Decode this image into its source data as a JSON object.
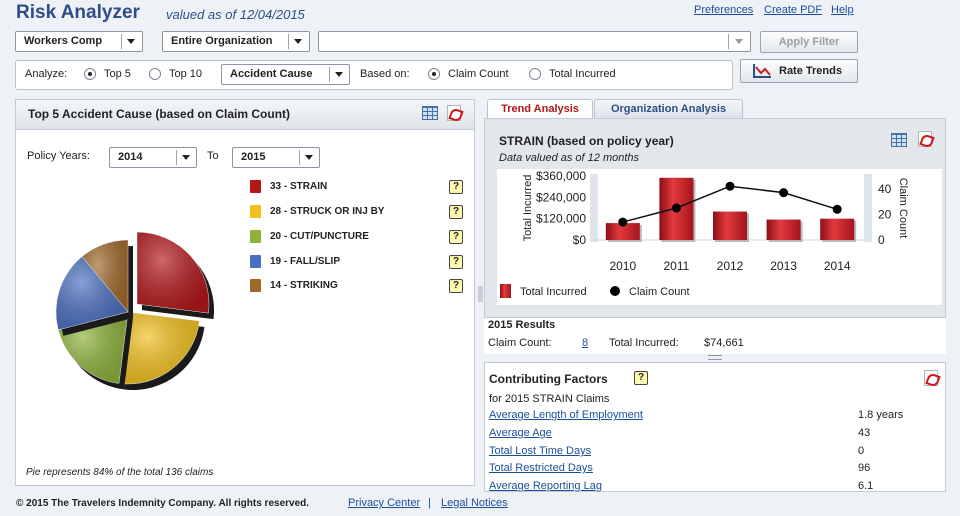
{
  "header": {
    "title": "Risk Analyzer",
    "valued_as_of": "valued as of 12/04/2015",
    "links": {
      "preferences": "Preferences",
      "create_pdf": "Create PDF",
      "help": "Help"
    }
  },
  "filters": {
    "line": "Workers Comp",
    "organization": "Entire Organization",
    "sub_filter": "",
    "apply_label": "Apply Filter",
    "rate_trends_label": "Rate Trends"
  },
  "analyze": {
    "label": "Analyze:",
    "top5": "Top 5",
    "top10": "Top 10",
    "dimension": "Accident Cause",
    "based_on_label": "Based on:",
    "claim_count": "Claim Count",
    "total_incurred": "Total Incurred"
  },
  "left_panel": {
    "title": "Top 5 Accident Cause (based on Claim Count)",
    "policy_years_label": "Policy Years:",
    "from_year": "2014",
    "to_label": "To",
    "to_year": "2015",
    "note": "Pie represents 84% of the total 136 claims",
    "legend": [
      {
        "label": "33 - STRAIN",
        "color": "#b3171a"
      },
      {
        "label": "28 - STRUCK OR INJ BY",
        "color": "#f2c01c"
      },
      {
        "label": "20 - CUT/PUNCTURE",
        "color": "#8cb23a"
      },
      {
        "label": "19 - FALL/SLIP",
        "color": "#4a6ec0"
      },
      {
        "label": "14 - STRIKING",
        "color": "#a0692a"
      }
    ],
    "help_glyph": "?"
  },
  "tabs": {
    "trend": "Trend Analysis",
    "org": "Organization Analysis"
  },
  "trend_chart": {
    "title": "STRAIN (based on policy year)",
    "subtitle": "Data valued as of 12 months",
    "legend_bar": "Total Incurred",
    "legend_dot": "Claim Count"
  },
  "chart_data": {
    "type": "bar",
    "categories": [
      "2010",
      "2011",
      "2012",
      "2013",
      "2014"
    ],
    "series": [
      {
        "name": "Total Incurred",
        "type": "bar",
        "axis": "left",
        "values": [
          95000,
          350000,
          160000,
          115000,
          120000
        ],
        "color": "#c8202a"
      },
      {
        "name": "Claim Count",
        "type": "line",
        "axis": "right",
        "values": [
          14,
          25,
          42,
          37,
          24
        ],
        "color": "#000000"
      }
    ],
    "ylabel": "Total Incurred",
    "ylabel_right": "Claim Count",
    "ylim": [
      0,
      360000
    ],
    "ylim_right": [
      0,
      50
    ],
    "yticks": [
      "$0",
      "$120,000",
      "$240,000",
      "$360,000"
    ],
    "yticks_right": [
      "0",
      "20",
      "40"
    ]
  },
  "results": {
    "title": "2015 Results",
    "claim_count_label": "Claim Count:",
    "claim_count": "8",
    "total_incurred_label": "Total Incurred:",
    "total_incurred": "$74,661"
  },
  "contributing": {
    "title": "Contributing Factors",
    "subtitle": "for 2015 STRAIN Claims",
    "rows": [
      {
        "label": "Average Length of Employment",
        "value": "1.8 years"
      },
      {
        "label": "Average Age",
        "value": "43"
      },
      {
        "label": "Total Lost Time Days",
        "value": "0"
      },
      {
        "label": "Total Restricted Days",
        "value": "96"
      },
      {
        "label": "Average Reporting Lag",
        "value": "6.1"
      }
    ]
  },
  "footer": {
    "copyright": "© 2015 The Travelers Indemnity Company. All rights reserved.",
    "privacy": "Privacy Center",
    "separator": "|",
    "legal": "Legal Notices"
  }
}
